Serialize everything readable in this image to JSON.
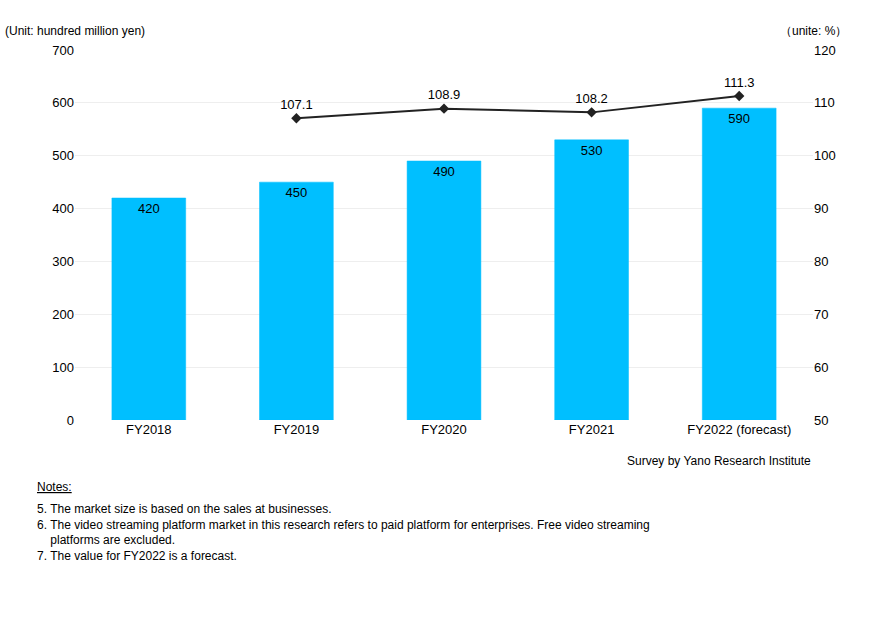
{
  "chart_data": {
    "type": "bar",
    "categories": [
      "FY2018",
      "FY2019",
      "FY2020",
      "FY2021",
      "FY2022 (forecast)"
    ],
    "series": [
      {
        "type": "bar",
        "color": "#00BFFF",
        "values": [
          420,
          450,
          490,
          530,
          590
        ],
        "data_labels": true
      },
      {
        "type": "line",
        "color": "#222222",
        "marker": "diamond",
        "axis": "y2",
        "values": [
          null,
          107.1,
          108.9,
          108.2,
          111.3
        ],
        "data_labels": true
      }
    ],
    "ylabel": "(Unit: hundred million yen)",
    "y2label": "（unite: %）",
    "ylim": [
      0,
      700
    ],
    "yticks": [
      0,
      100,
      200,
      300,
      400,
      500,
      600,
      700
    ],
    "y2lim": [
      50,
      120
    ],
    "y2ticks": [
      50,
      60,
      70,
      80,
      90,
      100,
      110,
      120
    ],
    "grid": true,
    "annotations": [
      "Survey by Yano Research Institute",
      "Notes:",
      "5. The market size is based on the sales at businesses.",
      "6. The video streaming platform market in this research refers to paid platform for enterprises. Free video streaming\n    platforms are excluded.",
      "7. The value for FY2022 is a forecast."
    ]
  }
}
